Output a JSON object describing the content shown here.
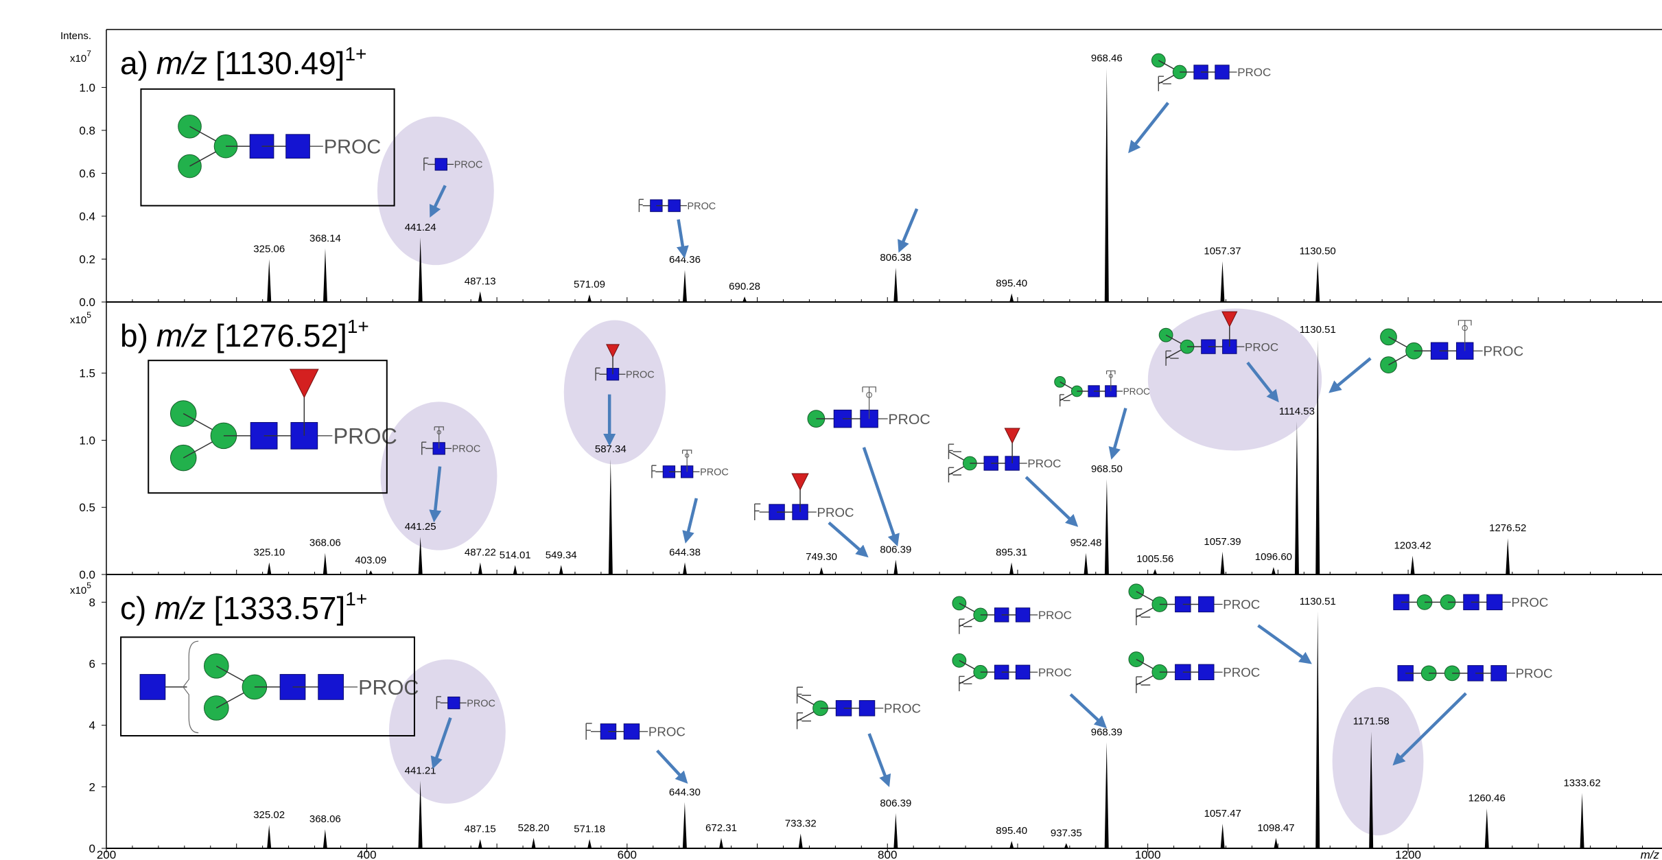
{
  "glycan_tag": "PROC",
  "chart_data": [
    {
      "type": "stem",
      "title_prefix": "a)",
      "title_italic": "m/z",
      "title": "[1130.49]",
      "title_sup": "1+",
      "y_label": "Intens.",
      "scale_base": "x10",
      "scale_exp": "7",
      "color": "#000000",
      "x": [
        325.06,
        368.14,
        441.24,
        487.13,
        571.09,
        644.36,
        690.28,
        806.38,
        895.4,
        968.46,
        1057.37,
        1130.5
      ],
      "x_labels": [
        "325.06",
        "368.14",
        "441.24",
        "487.13",
        "571.09",
        "644.36",
        "690.28",
        "806.38",
        "895.40",
        "968.46",
        "1057.37",
        "1130.50"
      ],
      "values": [
        0.2,
        0.25,
        0.3,
        0.05,
        0.035,
        0.15,
        0.025,
        0.16,
        0.04,
        1.09,
        0.19,
        0.19
      ],
      "xlim": [
        200,
        1395
      ],
      "ylim": [
        0,
        1.27
      ],
      "yticks": [
        {
          "value": 0,
          "label": "0.0"
        },
        0.2,
        0.4,
        0.6,
        0.8,
        {
          "value": 1,
          "label": "1.0"
        }
      ]
    },
    {
      "type": "stem",
      "title_prefix": "b)",
      "title_italic": "m/z",
      "title": "[1276.52]",
      "title_sup": "1+",
      "scale_base": "x10",
      "scale_exp": "5",
      "color": "#000000",
      "x": [
        325.1,
        368.06,
        403.09,
        441.25,
        487.22,
        514.01,
        549.34,
        587.34,
        644.38,
        749.3,
        806.39,
        895.31,
        952.48,
        968.5,
        1005.56,
        1057.39,
        1096.6,
        1114.53,
        1130.51,
        1203.42,
        1276.52
      ],
      "x_labels": [
        "325.10",
        "368.06",
        "403.09",
        "441.25",
        "487.22",
        "514.01",
        "549.34",
        "587.34",
        "644.38",
        "749.30",
        "806.39",
        "895.31",
        "952.48",
        "968.50",
        "1005.56",
        "1057.39",
        "1096.60",
        "1114.53",
        "1130.51",
        "1203.42",
        "1276.52"
      ],
      "values": [
        0.09,
        0.16,
        0.03,
        0.28,
        0.09,
        0.07,
        0.07,
        0.86,
        0.09,
        0.055,
        0.11,
        0.09,
        0.16,
        0.71,
        0.04,
        0.17,
        0.055,
        1.14,
        1.75,
        0.14,
        0.27
      ],
      "xlim": [
        200,
        1395
      ],
      "ylim": [
        0,
        2.03
      ],
      "yticks": [
        {
          "value": 0,
          "label": "0.0"
        },
        0.5,
        {
          "value": 1,
          "label": "1.0"
        },
        1.5
      ]
    },
    {
      "type": "stem",
      "title_prefix": "c)",
      "title_italic": "m/z",
      "title": "[1333.57]",
      "title_sup": "1+",
      "scale_base": "x10",
      "scale_exp": "5",
      "color": "#000000",
      "x_label": "m/z",
      "x": [
        325.02,
        368.06,
        441.21,
        487.15,
        528.2,
        571.18,
        644.3,
        672.31,
        733.32,
        806.39,
        895.4,
        937.35,
        968.39,
        1057.47,
        1098.47,
        1130.51,
        1171.58,
        1260.46,
        1333.62
      ],
      "x_labels": [
        "325.02",
        "368.06",
        "441.21",
        "487.15",
        "528.20",
        "571.18",
        "644.30",
        "672.31",
        "733.32",
        "806.39",
        "895.40",
        "937.35",
        "968.39",
        "1057.47",
        "1098.47",
        "1130.51",
        "1171.58",
        "1260.46",
        "1333.62"
      ],
      "values": [
        0.76,
        0.62,
        2.2,
        0.3,
        0.34,
        0.3,
        1.5,
        0.34,
        0.48,
        1.14,
        0.24,
        0.17,
        3.45,
        0.8,
        0.34,
        7.7,
        3.8,
        1.3,
        1.8
      ],
      "xlim": [
        200,
        1395
      ],
      "ylim": [
        0,
        8.9
      ],
      "yticks": [
        0,
        2,
        4,
        6,
        8
      ],
      "xticks": [
        200,
        400,
        600,
        800,
        1000,
        1200
      ]
    }
  ]
}
